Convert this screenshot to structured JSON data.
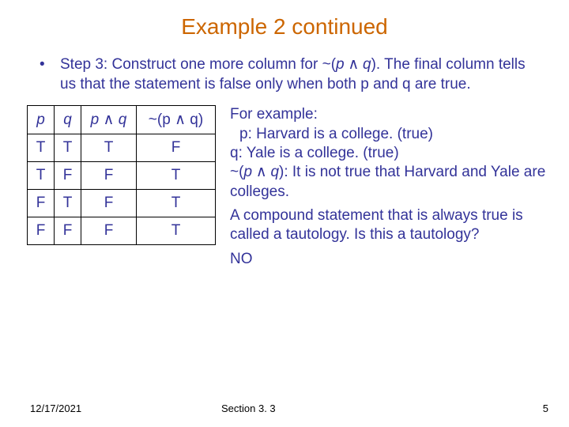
{
  "colors": {
    "title": "#cc6600",
    "body": "#333399",
    "table_border": "#000000",
    "background": "#ffffff"
  },
  "fonts": {
    "title_size": 28,
    "body_size": 19,
    "footer_size": 13
  },
  "title": "Example 2 continued",
  "step": {
    "bullet": "•",
    "pre": "Step 3:  Construct one more column for ~(",
    "p": "p",
    "wedge": " ∧ ",
    "q": "q",
    "post": ").  The final column tells us that the statement is false only when both p and q are true."
  },
  "table": {
    "headers": {
      "p": "p",
      "q": "q",
      "pq_pre": "p ",
      "pq_wedge": "∧",
      "pq_post": " q",
      "npq_pre": "~(p ",
      "npq_wedge": "∧",
      "npq_post": " q)"
    },
    "rows": [
      {
        "p": "T",
        "q": "T",
        "pq": "T",
        "npq": "F"
      },
      {
        "p": "T",
        "q": "F",
        "pq": "F",
        "npq": "T"
      },
      {
        "p": "F",
        "q": "T",
        "pq": "F",
        "npq": "T"
      },
      {
        "p": "F",
        "q": "F",
        "pq": "F",
        "npq": "T"
      }
    ]
  },
  "example": {
    "intro": "For example:",
    "p_line": " p:  Harvard is a college. (true)",
    "q_line": "q:  Yale is a college. (true)",
    "neg_pre": "~(",
    "neg_p": "p",
    "neg_wedge": " ∧ ",
    "neg_q": "q",
    "neg_post": "):  It is not true that Harvard and Yale are colleges.",
    "tautology": "A compound statement that is always true is called a tautology.  Is this a tautology?",
    "answer": "NO"
  },
  "footer": {
    "date": "12/17/2021",
    "section": "Section 3. 3",
    "page": "5"
  }
}
